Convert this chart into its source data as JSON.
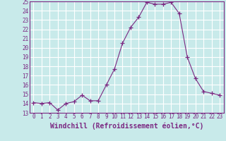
{
  "x": [
    0,
    1,
    2,
    3,
    4,
    5,
    6,
    7,
    8,
    9,
    10,
    11,
    12,
    13,
    14,
    15,
    16,
    17,
    18,
    19,
    20,
    21,
    22,
    23
  ],
  "y": [
    14.1,
    14.0,
    14.1,
    13.3,
    14.0,
    14.2,
    14.9,
    14.3,
    14.3,
    16.0,
    17.7,
    20.5,
    22.2,
    23.3,
    24.9,
    24.7,
    24.7,
    24.9,
    23.7,
    19.0,
    16.7,
    15.3,
    15.1,
    14.9
  ],
  "line_color": "#7B2882",
  "marker": "+",
  "marker_size": 4,
  "bg_color": "#c8eaea",
  "grid_color": "#ffffff",
  "xlabel": "Windchill (Refroidissement éolien,°C)",
  "ylim": [
    13,
    25
  ],
  "xlim_min": -0.5,
  "xlim_max": 23.5,
  "yticks": [
    13,
    14,
    15,
    16,
    17,
    18,
    19,
    20,
    21,
    22,
    23,
    24,
    25
  ],
  "xticks": [
    0,
    1,
    2,
    3,
    4,
    5,
    6,
    7,
    8,
    9,
    10,
    11,
    12,
    13,
    14,
    15,
    16,
    17,
    18,
    19,
    20,
    21,
    22,
    23
  ],
  "tick_fontsize": 5.5,
  "xlabel_fontsize": 7
}
